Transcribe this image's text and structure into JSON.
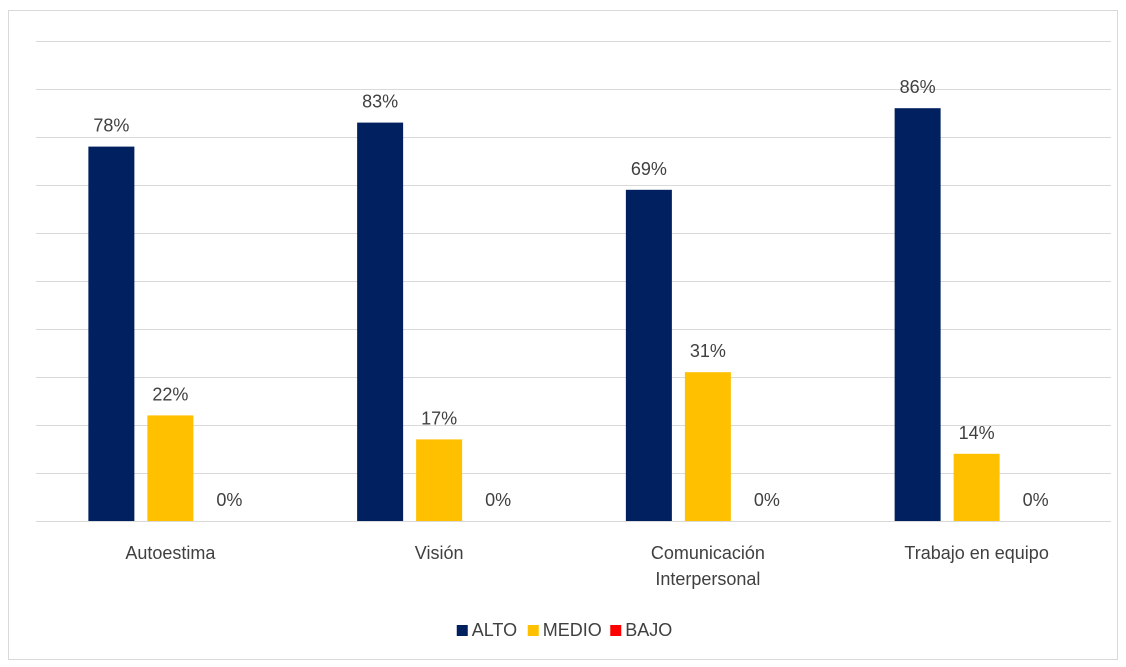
{
  "chart_data": {
    "type": "bar",
    "categories": [
      [
        "Autoestima"
      ],
      [
        "Visión"
      ],
      [
        "Comunicación",
        "Interpersonal"
      ],
      [
        "Trabajo en equipo"
      ]
    ],
    "series": [
      {
        "name": "ALTO",
        "color": "#002060",
        "values": [
          78,
          83,
          69,
          86
        ],
        "labels": [
          "78%",
          "83%",
          "69%",
          "86%"
        ]
      },
      {
        "name": "MEDIO",
        "color": "#FFC000",
        "values": [
          22,
          17,
          31,
          14
        ],
        "labels": [
          "22%",
          "17%",
          "31%",
          "14%"
        ]
      },
      {
        "name": "BAJO",
        "color": "#FF0000",
        "values": [
          0,
          0,
          0,
          0
        ],
        "labels": [
          "0%",
          "0%",
          "0%",
          "0%"
        ]
      }
    ],
    "ylim": [
      0,
      100
    ],
    "grid": true,
    "legend": "bottom",
    "title": "",
    "xlabel": "",
    "ylabel": ""
  }
}
